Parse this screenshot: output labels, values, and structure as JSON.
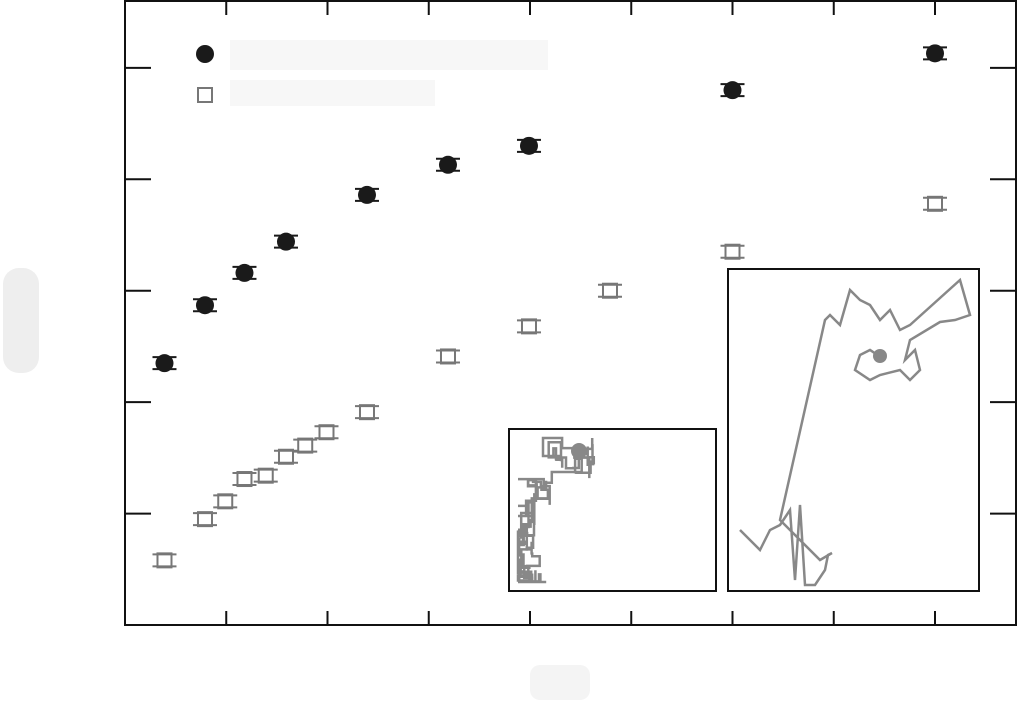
{
  "chart_data": {
    "type": "scatter",
    "xlim": [
      0,
      8.8
    ],
    "xticks": [
      0,
      1,
      2,
      3,
      4,
      5,
      6,
      7,
      8
    ],
    "ylim": [
      0,
      5.6
    ],
    "yticks": [
      0,
      1,
      2,
      3,
      4,
      5
    ],
    "series": [
      {
        "color": "#1a1a1a",
        "marker": "circle",
        "x": [
          0.39,
          0.79,
          1.18,
          1.59,
          2.39,
          3.19,
          3.99,
          6.0,
          8.0
        ],
        "values": [
          2.35,
          2.87,
          3.16,
          3.44,
          3.86,
          4.13,
          4.3,
          4.8,
          5.13
        ]
      },
      {
        "color": "#777777",
        "marker": "square",
        "x": [
          0.39,
          0.79,
          0.99,
          1.18,
          1.39,
          1.59,
          1.78,
          1.99,
          2.39,
          3.19,
          3.99,
          4.79,
          6.0,
          8.0
        ],
        "values": [
          0.58,
          0.95,
          1.11,
          1.31,
          1.34,
          1.51,
          1.61,
          1.73,
          1.91,
          2.41,
          2.68,
          3.0,
          3.35,
          3.78
        ]
      }
    ]
  }
}
